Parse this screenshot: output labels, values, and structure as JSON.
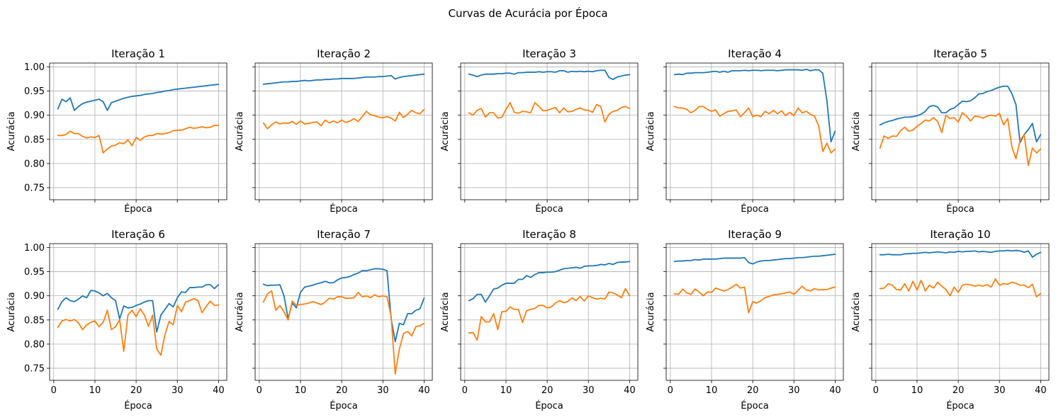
{
  "figure": {
    "title": "Curvas de Acurácia por Época"
  },
  "colors": {
    "train": "#1f77b4",
    "val": "#ff7f0e",
    "grid": "#b0b0b0"
  },
  "chart_data": {
    "type": "line",
    "layout": "2x5 grid of subplots, shared axes",
    "grid": true,
    "xlabel": "Época",
    "ylabel": "Acurácia",
    "xlim": [
      -1,
      42
    ],
    "ylim": [
      0.725,
      1.008
    ],
    "xticks": [
      0,
      10,
      20,
      30,
      40
    ],
    "yticks": [
      0.75,
      0.8,
      0.85,
      0.9,
      0.95,
      1.0
    ],
    "ytick_labels": [
      "0.75",
      "0.80",
      "0.85",
      "0.90",
      "0.95",
      "1.00"
    ],
    "xtick_labels": [
      "0",
      "10",
      "20",
      "30",
      "40"
    ],
    "epochs": [
      1,
      2,
      3,
      4,
      5,
      6,
      7,
      8,
      9,
      10,
      11,
      12,
      13,
      14,
      15,
      16,
      17,
      18,
      19,
      20,
      21,
      22,
      23,
      24,
      25,
      26,
      27,
      28,
      29,
      30,
      31,
      32,
      33,
      34,
      35,
      36,
      37,
      38,
      39,
      40
    ],
    "subplots": [
      {
        "title": "Iteração 1",
        "series": [
          {
            "values": [
              0.913,
              0.933,
              0.928,
              0.936,
              0.91,
              0.918,
              0.924,
              0.927,
              0.929,
              0.931,
              0.933,
              0.928,
              0.91,
              0.926,
              0.929,
              0.932,
              0.935,
              0.937,
              0.939,
              0.94,
              0.941,
              0.943,
              0.944,
              0.945,
              0.947,
              0.948,
              0.95,
              0.951,
              0.953,
              0.954,
              0.955,
              0.956,
              0.957,
              0.958,
              0.959,
              0.96,
              0.961,
              0.962,
              0.963,
              0.964
            ]
          },
          {
            "values": [
              0.858,
              0.858,
              0.86,
              0.867,
              0.862,
              0.862,
              0.856,
              0.853,
              0.855,
              0.854,
              0.858,
              0.822,
              0.83,
              0.836,
              0.838,
              0.843,
              0.841,
              0.849,
              0.837,
              0.854,
              0.848,
              0.855,
              0.858,
              0.858,
              0.862,
              0.861,
              0.862,
              0.864,
              0.868,
              0.869,
              0.869,
              0.872,
              0.875,
              0.873,
              0.874,
              0.876,
              0.874,
              0.875,
              0.879,
              0.879
            ]
          }
        ]
      },
      {
        "title": "Iteração 2",
        "series": [
          {
            "values": [
              0.964,
              0.965,
              0.966,
              0.967,
              0.968,
              0.969,
              0.969,
              0.97,
              0.97,
              0.971,
              0.972,
              0.971,
              0.972,
              0.973,
              0.973,
              0.974,
              0.974,
              0.975,
              0.975,
              0.976,
              0.976,
              0.976,
              0.976,
              0.977,
              0.978,
              0.979,
              0.979,
              0.979,
              0.98,
              0.98,
              0.981,
              0.982,
              0.975,
              0.978,
              0.98,
              0.981,
              0.982,
              0.983,
              0.984,
              0.985
            ]
          },
          {
            "values": [
              0.884,
              0.872,
              0.88,
              0.886,
              0.882,
              0.884,
              0.883,
              0.887,
              0.881,
              0.888,
              0.882,
              0.883,
              0.885,
              0.886,
              0.878,
              0.89,
              0.884,
              0.888,
              0.884,
              0.89,
              0.885,
              0.888,
              0.893,
              0.887,
              0.897,
              0.908,
              0.901,
              0.899,
              0.896,
              0.895,
              0.897,
              0.894,
              0.888,
              0.906,
              0.895,
              0.902,
              0.91,
              0.905,
              0.903,
              0.912
            ]
          }
        ]
      },
      {
        "title": "Iteração 3",
        "series": [
          {
            "values": [
              0.985,
              0.983,
              0.98,
              0.983,
              0.985,
              0.985,
              0.985,
              0.986,
              0.986,
              0.987,
              0.987,
              0.985,
              0.988,
              0.988,
              0.989,
              0.989,
              0.989,
              0.99,
              0.989,
              0.99,
              0.99,
              0.989,
              0.992,
              0.992,
              0.989,
              0.991,
              0.99,
              0.991,
              0.99,
              0.991,
              0.99,
              0.992,
              0.993,
              0.993,
              0.978,
              0.974,
              0.979,
              0.981,
              0.983,
              0.984
            ]
          },
          {
            "values": [
              0.905,
              0.9,
              0.91,
              0.914,
              0.896,
              0.905,
              0.905,
              0.894,
              0.896,
              0.912,
              0.926,
              0.906,
              0.904,
              0.908,
              0.907,
              0.905,
              0.926,
              0.918,
              0.909,
              0.91,
              0.913,
              0.916,
              0.905,
              0.915,
              0.907,
              0.908,
              0.912,
              0.915,
              0.911,
              0.91,
              0.906,
              0.922,
              0.918,
              0.886,
              0.902,
              0.908,
              0.91,
              0.916,
              0.918,
              0.914
            ]
          }
        ]
      },
      {
        "title": "Iteração 4",
        "series": [
          {
            "values": [
              0.984,
              0.985,
              0.984,
              0.987,
              0.987,
              0.988,
              0.988,
              0.988,
              0.989,
              0.99,
              0.991,
              0.989,
              0.991,
              0.989,
              0.992,
              0.992,
              0.992,
              0.993,
              0.992,
              0.993,
              0.993,
              0.992,
              0.993,
              0.993,
              0.993,
              0.992,
              0.993,
              0.994,
              0.994,
              0.994,
              0.994,
              0.993,
              0.995,
              0.992,
              0.994,
              0.994,
              0.987,
              0.93,
              0.845,
              0.867
            ]
          },
          {
            "values": [
              0.918,
              0.915,
              0.915,
              0.912,
              0.905,
              0.91,
              0.918,
              0.918,
              0.912,
              0.908,
              0.911,
              0.898,
              0.903,
              0.908,
              0.909,
              0.911,
              0.897,
              0.905,
              0.915,
              0.897,
              0.9,
              0.897,
              0.908,
              0.903,
              0.91,
              0.903,
              0.909,
              0.899,
              0.906,
              0.899,
              0.915,
              0.905,
              0.908,
              0.902,
              0.898,
              0.878,
              0.825,
              0.842,
              0.822,
              0.83
            ]
          }
        ]
      },
      {
        "title": "Iteração 5",
        "series": [
          {
            "values": [
              0.88,
              0.884,
              0.887,
              0.889,
              0.892,
              0.894,
              0.896,
              0.896,
              0.897,
              0.899,
              0.902,
              0.908,
              0.918,
              0.92,
              0.917,
              0.905,
              0.905,
              0.912,
              0.915,
              0.922,
              0.929,
              0.928,
              0.93,
              0.936,
              0.944,
              0.945,
              0.949,
              0.951,
              0.955,
              0.958,
              0.96,
              0.96,
              0.945,
              0.922,
              0.843,
              0.86,
              0.87,
              0.883,
              0.845,
              0.86
            ]
          },
          {
            "values": [
              0.832,
              0.857,
              0.852,
              0.857,
              0.856,
              0.868,
              0.875,
              0.867,
              0.869,
              0.877,
              0.883,
              0.89,
              0.888,
              0.895,
              0.887,
              0.864,
              0.9,
              0.893,
              0.895,
              0.886,
              0.905,
              0.898,
              0.888,
              0.898,
              0.897,
              0.894,
              0.898,
              0.9,
              0.898,
              0.904,
              0.88,
              0.893,
              0.835,
              0.81,
              0.848,
              0.86,
              0.796,
              0.832,
              0.822,
              0.83
            ]
          }
        ]
      },
      {
        "title": "Iteração 6",
        "series": [
          {
            "values": [
              0.872,
              0.888,
              0.896,
              0.89,
              0.888,
              0.893,
              0.9,
              0.896,
              0.911,
              0.91,
              0.906,
              0.9,
              0.905,
              0.896,
              0.89,
              0.852,
              0.879,
              0.875,
              0.876,
              0.88,
              0.883,
              0.887,
              0.89,
              0.89,
              0.825,
              0.86,
              0.872,
              0.884,
              0.877,
              0.896,
              0.908,
              0.907,
              0.917,
              0.917,
              0.918,
              0.918,
              0.923,
              0.923,
              0.915,
              0.923
            ]
          },
          {
            "values": [
              0.835,
              0.848,
              0.851,
              0.848,
              0.851,
              0.844,
              0.83,
              0.84,
              0.845,
              0.848,
              0.836,
              0.845,
              0.87,
              0.83,
              0.836,
              0.85,
              0.785,
              0.86,
              0.87,
              0.857,
              0.873,
              0.86,
              0.837,
              0.86,
              0.79,
              0.777,
              0.82,
              0.847,
              0.84,
              0.88,
              0.867,
              0.887,
              0.89,
              0.894,
              0.89,
              0.865,
              0.878,
              0.889,
              0.88,
              0.881
            ]
          }
        ]
      },
      {
        "title": "Iteração 7",
        "series": [
          {
            "values": [
              0.924,
              0.921,
              0.922,
              0.922,
              0.923,
              0.9,
              0.853,
              0.885,
              0.875,
              0.907,
              0.918,
              0.92,
              0.922,
              0.925,
              0.927,
              0.93,
              0.927,
              0.927,
              0.933,
              0.937,
              0.938,
              0.94,
              0.944,
              0.947,
              0.952,
              0.952,
              0.954,
              0.956,
              0.956,
              0.955,
              0.952,
              0.853,
              0.805,
              0.843,
              0.84,
              0.863,
              0.863,
              0.87,
              0.873,
              0.895
            ]
          },
          {
            "values": [
              0.887,
              0.904,
              0.91,
              0.87,
              0.88,
              0.867,
              0.85,
              0.889,
              0.88,
              0.882,
              0.883,
              0.885,
              0.888,
              0.885,
              0.882,
              0.887,
              0.895,
              0.893,
              0.898,
              0.898,
              0.895,
              0.895,
              0.896,
              0.907,
              0.898,
              0.9,
              0.896,
              0.902,
              0.898,
              0.9,
              0.898,
              0.858,
              0.738,
              0.79,
              0.822,
              0.826,
              0.817,
              0.836,
              0.838,
              0.843
            ]
          }
        ]
      },
      {
        "title": "Iteração 8",
        "series": [
          {
            "values": [
              0.89,
              0.894,
              0.903,
              0.903,
              0.887,
              0.9,
              0.914,
              0.916,
              0.922,
              0.926,
              0.926,
              0.926,
              0.934,
              0.934,
              0.942,
              0.938,
              0.944,
              0.948,
              0.948,
              0.949,
              0.949,
              0.95,
              0.953,
              0.956,
              0.957,
              0.958,
              0.959,
              0.957,
              0.961,
              0.962,
              0.962,
              0.963,
              0.965,
              0.964,
              0.967,
              0.965,
              0.969,
              0.97,
              0.97,
              0.971
            ]
          },
          {
            "values": [
              0.823,
              0.824,
              0.808,
              0.857,
              0.846,
              0.846,
              0.863,
              0.83,
              0.867,
              0.868,
              0.877,
              0.872,
              0.872,
              0.845,
              0.869,
              0.872,
              0.874,
              0.88,
              0.88,
              0.875,
              0.877,
              0.885,
              0.89,
              0.886,
              0.888,
              0.896,
              0.89,
              0.899,
              0.889,
              0.9,
              0.896,
              0.893,
              0.895,
              0.893,
              0.908,
              0.906,
              0.902,
              0.896,
              0.915,
              0.9
            ]
          }
        ]
      },
      {
        "title": "Iteração 9",
        "series": [
          {
            "values": [
              0.971,
              0.972,
              0.972,
              0.973,
              0.973,
              0.975,
              0.974,
              0.976,
              0.976,
              0.976,
              0.976,
              0.977,
              0.978,
              0.978,
              0.978,
              0.978,
              0.978,
              0.979,
              0.969,
              0.966,
              0.97,
              0.972,
              0.973,
              0.973,
              0.974,
              0.975,
              0.976,
              0.977,
              0.977,
              0.978,
              0.979,
              0.979,
              0.98,
              0.981,
              0.982,
              0.982,
              0.983,
              0.984,
              0.985,
              0.986
            ]
          },
          {
            "values": [
              0.904,
              0.903,
              0.914,
              0.906,
              0.903,
              0.914,
              0.908,
              0.9,
              0.908,
              0.907,
              0.916,
              0.913,
              0.91,
              0.913,
              0.918,
              0.924,
              0.916,
              0.918,
              0.865,
              0.888,
              0.885,
              0.89,
              0.896,
              0.899,
              0.902,
              0.903,
              0.904,
              0.906,
              0.908,
              0.903,
              0.911,
              0.92,
              0.912,
              0.91,
              0.915,
              0.912,
              0.913,
              0.913,
              0.916,
              0.918
            ]
          }
        ]
      },
      {
        "title": "Iteração 10",
        "series": [
          {
            "values": [
              0.985,
              0.985,
              0.986,
              0.985,
              0.985,
              0.985,
              0.987,
              0.987,
              0.988,
              0.988,
              0.989,
              0.99,
              0.989,
              0.99,
              0.991,
              0.99,
              0.989,
              0.991,
              0.99,
              0.992,
              0.991,
              0.992,
              0.992,
              0.993,
              0.991,
              0.992,
              0.991,
              0.99,
              0.992,
              0.993,
              0.993,
              0.994,
              0.993,
              0.994,
              0.993,
              0.99,
              0.993,
              0.98,
              0.986,
              0.99
            ]
          },
          {
            "values": [
              0.915,
              0.916,
              0.925,
              0.922,
              0.913,
              0.912,
              0.925,
              0.91,
              0.93,
              0.912,
              0.932,
              0.91,
              0.922,
              0.916,
              0.928,
              0.92,
              0.913,
              0.9,
              0.918,
              0.907,
              0.922,
              0.924,
              0.923,
              0.92,
              0.922,
              0.92,
              0.923,
              0.918,
              0.935,
              0.922,
              0.925,
              0.924,
              0.928,
              0.926,
              0.922,
              0.922,
              0.917,
              0.924,
              0.898,
              0.905
            ]
          }
        ]
      }
    ]
  }
}
